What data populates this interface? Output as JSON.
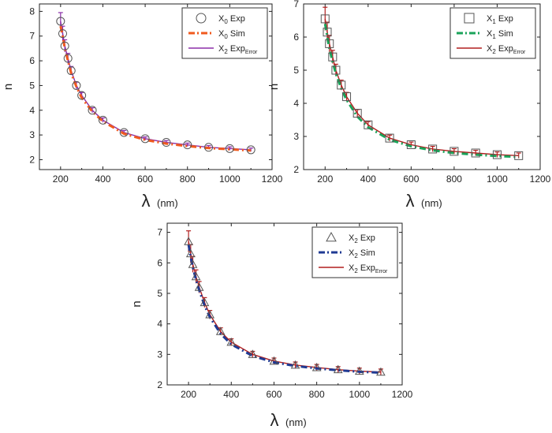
{
  "chart_data": [
    {
      "type": "scatter",
      "xlabel": "λ",
      "xunit": "(nm)",
      "ylabel": "n",
      "xlim": [
        100,
        1200
      ],
      "ylim": [
        1.6,
        8.3
      ],
      "xticks": [
        200,
        400,
        600,
        800,
        1000,
        1200
      ],
      "yticks": [
        2,
        3,
        4,
        5,
        6,
        7,
        8
      ],
      "legend_position": "top-right",
      "legend": [
        {
          "marker": "circle",
          "color": "#555555",
          "text": "X",
          "sub": "0",
          "rest": " Exp",
          "rest_sub": ""
        },
        {
          "marker": "dashdot",
          "color": "#f05a1e",
          "text": "X",
          "sub": "0",
          "rest": " Sim",
          "rest_sub": ""
        },
        {
          "marker": "line",
          "color": "#8b2fa8",
          "text": "X",
          "sub": "2",
          "rest": " Exp",
          "rest_sub": "Error"
        }
      ],
      "series": [
        {
          "role": "experimental",
          "marker": "circle",
          "color": "#555555",
          "x": [
            200,
            210,
            220,
            235,
            250,
            275,
            300,
            350,
            400,
            500,
            600,
            700,
            800,
            900,
            1000,
            1100
          ],
          "y": [
            7.6,
            7.1,
            6.6,
            6.1,
            5.6,
            5.0,
            4.6,
            4.0,
            3.6,
            3.1,
            2.85,
            2.7,
            2.6,
            2.5,
            2.45,
            2.4
          ]
        },
        {
          "role": "simulated",
          "style": "dashdot",
          "color": "#f05a1e",
          "x": [
            200,
            210,
            220,
            235,
            250,
            275,
            300,
            350,
            400,
            500,
            600,
            700,
            800,
            900,
            1000,
            1100
          ],
          "y": [
            7.4,
            7.0,
            6.5,
            6.0,
            5.5,
            4.95,
            4.5,
            3.95,
            3.55,
            3.05,
            2.8,
            2.65,
            2.55,
            2.47,
            2.42,
            2.37
          ]
        },
        {
          "role": "error",
          "style": "errorbar",
          "color": "#8b2fa8",
          "x": [
            200,
            210,
            220,
            235,
            250,
            275,
            300,
            350,
            400,
            500,
            600,
            700,
            800,
            900,
            1000,
            1100
          ],
          "y": [
            7.6,
            7.1,
            6.6,
            6.1,
            5.6,
            5.0,
            4.6,
            4.0,
            3.6,
            3.1,
            2.85,
            2.7,
            2.6,
            2.5,
            2.45,
            2.4
          ],
          "err": [
            0.35,
            0.3,
            0.25,
            0.2,
            0.17,
            0.14,
            0.12,
            0.1,
            0.09,
            0.08,
            0.07,
            0.07,
            0.07,
            0.07,
            0.07,
            0.07
          ]
        }
      ]
    },
    {
      "type": "scatter",
      "xlabel": "λ",
      "xunit": "(nm)",
      "ylabel": "n",
      "xlim": [
        100,
        1200
      ],
      "ylim": [
        2,
        7
      ],
      "xticks": [
        200,
        400,
        600,
        800,
        1000,
        1200
      ],
      "yticks": [
        2,
        3,
        4,
        5,
        6,
        7
      ],
      "legend_position": "top-right",
      "legend": [
        {
          "marker": "square",
          "color": "#555555",
          "text": "X",
          "sub": "1",
          "rest": " Exp",
          "rest_sub": ""
        },
        {
          "marker": "dashdot",
          "color": "#1aa35a",
          "text": "X",
          "sub": "1",
          "rest": " Sim",
          "rest_sub": ""
        },
        {
          "marker": "line",
          "color": "#b21f1f",
          "text": "X",
          "sub": "2",
          "rest": " Exp",
          "rest_sub": "Error"
        }
      ],
      "series": [
        {
          "role": "experimental",
          "marker": "square",
          "color": "#555555",
          "x": [
            200,
            210,
            220,
            235,
            250,
            275,
            300,
            350,
            400,
            500,
            600,
            700,
            800,
            900,
            1000,
            1100
          ],
          "y": [
            6.55,
            6.15,
            5.8,
            5.4,
            5.0,
            4.55,
            4.2,
            3.7,
            3.35,
            2.95,
            2.75,
            2.62,
            2.55,
            2.5,
            2.45,
            2.42
          ]
        },
        {
          "role": "simulated",
          "style": "dashdot",
          "color": "#1aa35a",
          "x": [
            200,
            210,
            220,
            235,
            250,
            275,
            300,
            350,
            400,
            500,
            600,
            700,
            800,
            900,
            1000,
            1100
          ],
          "y": [
            6.4,
            6.0,
            5.65,
            5.25,
            4.9,
            4.45,
            4.1,
            3.6,
            3.28,
            2.9,
            2.7,
            2.58,
            2.5,
            2.45,
            2.41,
            2.38
          ]
        },
        {
          "role": "error",
          "style": "errorbar",
          "color": "#b21f1f",
          "x": [
            200,
            210,
            220,
            235,
            250,
            275,
            300,
            350,
            400,
            500,
            600,
            700,
            800,
            900,
            1000,
            1100
          ],
          "y": [
            6.55,
            6.15,
            5.8,
            5.4,
            5.0,
            4.55,
            4.2,
            3.7,
            3.35,
            2.95,
            2.75,
            2.62,
            2.55,
            2.5,
            2.45,
            2.42
          ],
          "err": [
            0.35,
            0.3,
            0.25,
            0.2,
            0.18,
            0.15,
            0.13,
            0.11,
            0.1,
            0.09,
            0.08,
            0.08,
            0.08,
            0.08,
            0.08,
            0.08
          ]
        }
      ]
    },
    {
      "type": "scatter",
      "xlabel": "λ",
      "xunit": "(nm)",
      "ylabel": "n",
      "xlim": [
        100,
        1200
      ],
      "ylim": [
        2,
        7.3
      ],
      "xticks": [
        200,
        400,
        600,
        800,
        1000,
        1200
      ],
      "yticks": [
        2,
        3,
        4,
        5,
        6,
        7
      ],
      "legend_position": "top-right",
      "legend": [
        {
          "marker": "triangle",
          "color": "#555555",
          "text": "X",
          "sub": "2",
          "rest": " Exp",
          "rest_sub": ""
        },
        {
          "marker": "dashdot",
          "color": "#1f3a93",
          "text": "X",
          "sub": "2",
          "rest": " Sim",
          "rest_sub": ""
        },
        {
          "marker": "line",
          "color": "#b21f1f",
          "text": "X",
          "sub": "2",
          "rest": " Exp",
          "rest_sub": "Error"
        }
      ],
      "series": [
        {
          "role": "experimental",
          "marker": "triangle",
          "color": "#555555",
          "x": [
            200,
            210,
            220,
            235,
            250,
            275,
            300,
            350,
            400,
            500,
            600,
            700,
            800,
            900,
            1000,
            1100
          ],
          "y": [
            6.7,
            6.3,
            5.95,
            5.55,
            5.2,
            4.7,
            4.3,
            3.75,
            3.4,
            3.0,
            2.78,
            2.65,
            2.57,
            2.5,
            2.45,
            2.42
          ]
        },
        {
          "role": "simulated",
          "style": "dashdot",
          "color": "#1f3a93",
          "x": [
            200,
            210,
            220,
            235,
            250,
            275,
            300,
            350,
            400,
            500,
            600,
            700,
            800,
            900,
            1000,
            1100
          ],
          "y": [
            6.6,
            6.2,
            5.85,
            5.45,
            5.1,
            4.6,
            4.22,
            3.68,
            3.33,
            2.95,
            2.74,
            2.62,
            2.54,
            2.48,
            2.43,
            2.4
          ]
        },
        {
          "role": "error",
          "style": "errorbar",
          "color": "#b21f1f",
          "x": [
            200,
            210,
            220,
            235,
            250,
            275,
            300,
            350,
            400,
            500,
            600,
            700,
            800,
            900,
            1000,
            1100
          ],
          "y": [
            6.7,
            6.3,
            5.95,
            5.55,
            5.2,
            4.7,
            4.3,
            3.75,
            3.4,
            3.0,
            2.78,
            2.65,
            2.57,
            2.5,
            2.45,
            2.42
          ],
          "err": [
            0.35,
            0.3,
            0.26,
            0.22,
            0.19,
            0.16,
            0.14,
            0.12,
            0.11,
            0.1,
            0.1,
            0.1,
            0.1,
            0.1,
            0.1,
            0.1
          ]
        }
      ]
    }
  ]
}
